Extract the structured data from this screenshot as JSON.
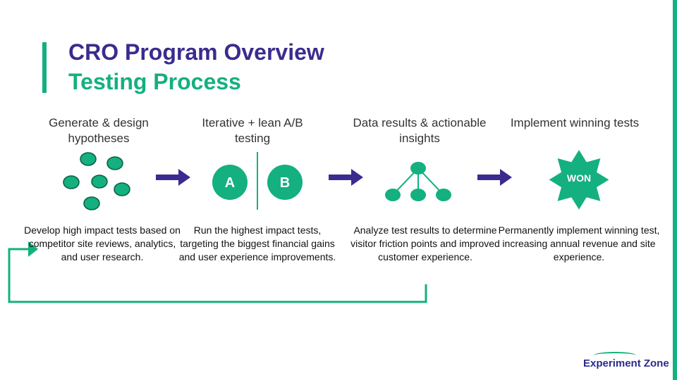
{
  "slide": {
    "title": "CRO Program Overview",
    "subtitle": "Testing Process",
    "colors": {
      "accent": "#14b07f",
      "brand": "#3a2c8e",
      "arrow": "#3a2c8e"
    }
  },
  "steps": [
    {
      "title": "Generate & design hypotheses",
      "icon": "ideas-cluster-icon",
      "description": "Develop high impact tests based on competitor site reviews, analytics, and user research."
    },
    {
      "title": "Iterative + lean A/B testing",
      "icon": "ab-test-icon",
      "description": "Run the highest impact tests, targeting the biggest financial gains and user experience improvements.",
      "badge_a": "A",
      "badge_b": "B"
    },
    {
      "title": "Data results & actionable  insights",
      "icon": "hierarchy-tree-icon",
      "description": "Analyze test results to determine visitor friction points and improved customer experience."
    },
    {
      "title": "Implement winning tests",
      "icon": "won-starburst-icon",
      "description": "Permanently implement winning test, increasing annual revenue and site experience.",
      "badge": "WON"
    }
  ],
  "brand": {
    "name": "Experiment Zone"
  }
}
